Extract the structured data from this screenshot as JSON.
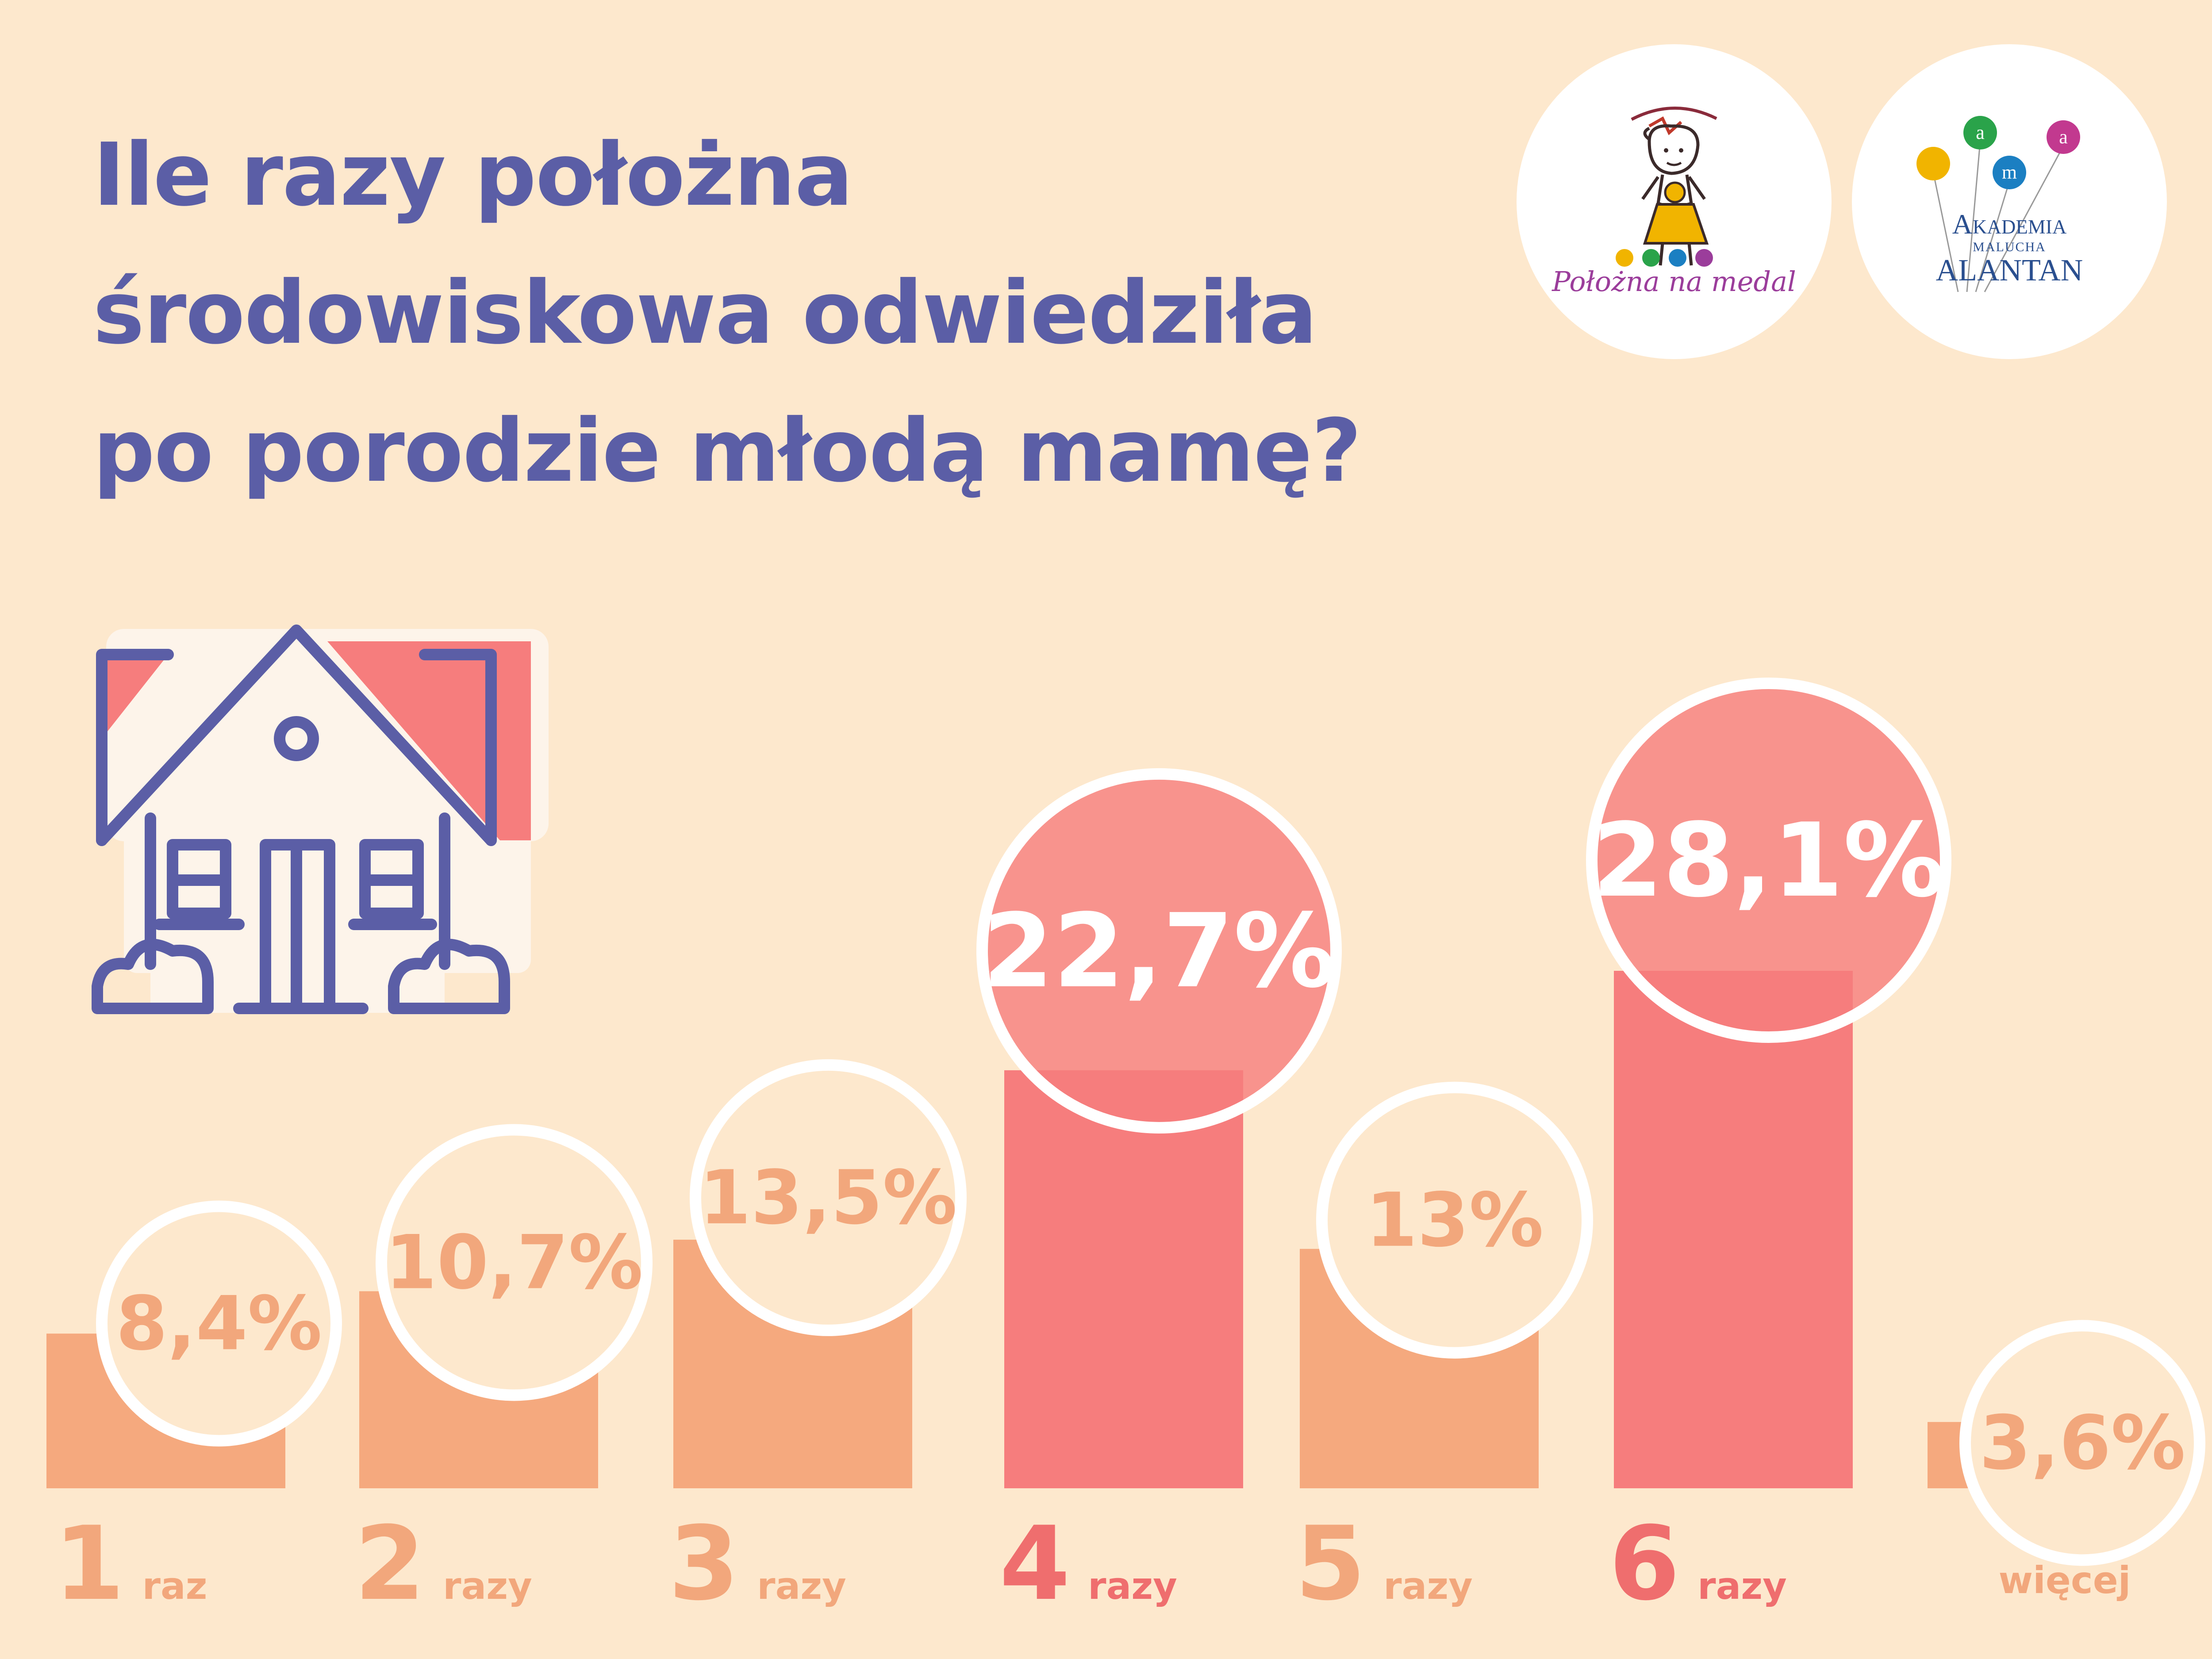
{
  "title": {
    "line1": "Ile razy położna",
    "line2": "środowiskowa odwiedziła",
    "line3": "po porodzie młodą mamę?"
  },
  "logos": {
    "polozna": {
      "text": "Położna na medal"
    },
    "akademia": {
      "line1": "Akademia",
      "line2": "Malucha",
      "line3": "ALANTAN",
      "balloons": [
        "a",
        "m",
        "a"
      ]
    }
  },
  "colors": {
    "background": "#fde8cd",
    "title": "#5b5ea6",
    "bar_light": "#f5a97e",
    "bar_highlight": "#f67d7d",
    "label_light": "#f2a77c",
    "label_highlight": "#ef6e6e"
  },
  "icons": {
    "house": "house-icon"
  },
  "chart_data": {
    "type": "bar",
    "categories": [
      {
        "number": "1",
        "unit": "raz"
      },
      {
        "number": "2",
        "unit": "razy"
      },
      {
        "number": "3",
        "unit": "razy"
      },
      {
        "number": "4",
        "unit": "razy"
      },
      {
        "number": "5",
        "unit": "razy"
      },
      {
        "number": "6",
        "unit": "razy"
      },
      {
        "number": "",
        "unit": "więcej"
      }
    ],
    "values": [
      8.4,
      10.7,
      13.5,
      22.7,
      13,
      28.1,
      3.6
    ],
    "value_labels": [
      "8,4%",
      "10,7%",
      "13,5%",
      "22,7%",
      "13%",
      "28,1%",
      "3,6%"
    ],
    "highlighted": [
      false,
      false,
      false,
      true,
      false,
      true,
      false
    ],
    "ylim": [
      0,
      28.1
    ],
    "grid": false
  }
}
